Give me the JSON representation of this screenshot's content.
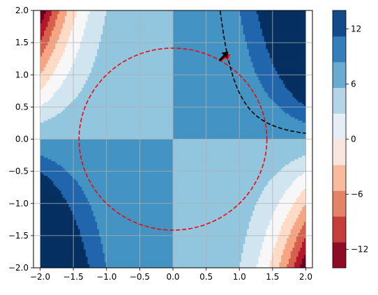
{
  "chart_data": {
    "type": "contour",
    "title": "",
    "xlabel": "",
    "ylabel": "",
    "xlim": [
      -2.1,
      2.1
    ],
    "ylim": [
      -2.0,
      2.0
    ],
    "grid": true,
    "x_ticks": [
      -2.0,
      -1.5,
      -1.0,
      -0.5,
      0.0,
      0.5,
      1.0,
      1.5,
      2.0
    ],
    "y_ticks": [
      -2.0,
      -1.5,
      -1.0,
      -0.5,
      0.0,
      0.5,
      1.0,
      1.5,
      2.0
    ],
    "x_tick_labels": [
      "−2.0",
      "−1.5",
      "−1.0",
      "−0.5",
      "0.0",
      "0.5",
      "1.0",
      "1.5",
      "2.0"
    ],
    "y_tick_labels": [
      "−2.0",
      "−1.5",
      "−1.0",
      "−0.5",
      "0.0",
      "0.5",
      "1.0",
      "1.5",
      "2.0"
    ],
    "filled_contour": {
      "function": "x^3 * y",
      "x_range": [
        -2.0,
        2.0
      ],
      "y_range": [
        -2.0,
        2.0
      ],
      "levels": [
        -16,
        -14,
        -12,
        -10,
        -8,
        -6,
        -4,
        -2,
        0,
        2,
        4,
        6,
        8,
        10,
        12,
        14,
        16
      ],
      "colormap": "RdBu",
      "band_colors": [
        "#67001f",
        "#b2182b",
        "#d6604d",
        "#f4a582",
        "#fddbc7",
        "#f7f7f7",
        "#d1e5f0",
        "#92c5de",
        "#4393c3",
        "#2166ac",
        "#053061"
      ]
    },
    "overlays": [
      {
        "kind": "circle",
        "center": [
          0,
          0
        ],
        "radius": 1.4142,
        "style": "dashed",
        "color": "#ff0000"
      },
      {
        "kind": "level_curve",
        "equation": "x^3 * y = 0.72",
        "style": "dashed",
        "color": "#000000",
        "x_from": 0.3,
        "x_to": 2.0
      },
      {
        "kind": "arrow",
        "origin": [
          0.7,
          1.22
        ],
        "direction": [
          0.9,
          0.52
        ],
        "color": "#ff0000"
      },
      {
        "kind": "arrow",
        "origin": [
          0.7,
          1.22
        ],
        "direction": [
          0.7,
          0.72
        ],
        "color": "#000000"
      }
    ],
    "colorbar": {
      "ticks": [
        -12,
        -6,
        0,
        6,
        12
      ],
      "tick_labels": [
        "−12",
        "−6",
        "0",
        "6",
        "12"
      ],
      "levels": [
        -14,
        -12,
        -10,
        -8,
        -6,
        -4,
        -2,
        0,
        2,
        4,
        6,
        8,
        10,
        12,
        14
      ],
      "colors": [
        "#8e0c25",
        "#c53e3b",
        "#e58368",
        "#f9bb9e",
        "#fae6dc",
        "#e5eef7",
        "#b4d5e8",
        "#6aa9d0",
        "#347fba",
        "#114c89"
      ]
    }
  }
}
